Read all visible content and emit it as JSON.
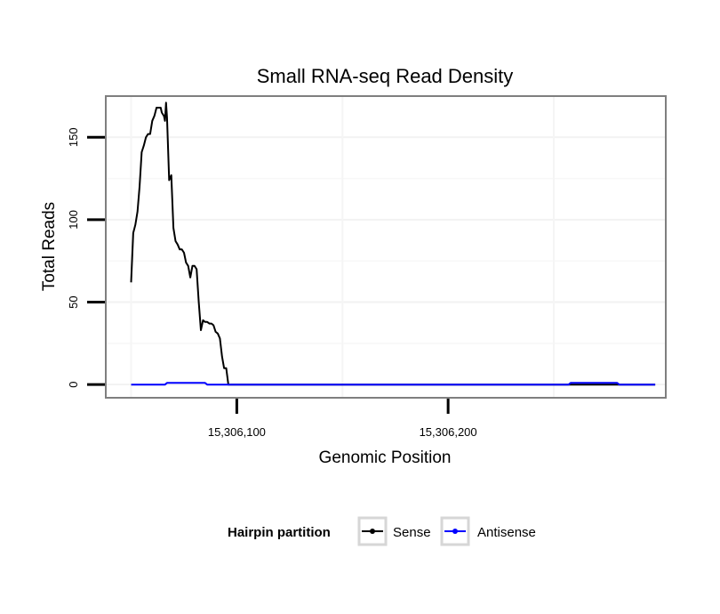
{
  "chart_data": {
    "type": "line",
    "title": "Small RNA-seq Read Density",
    "xlabel": "Genomic Position",
    "ylabel": "Total Reads",
    "xlim": [
      15306038,
      15306303
    ],
    "ylim": [
      -8,
      175
    ],
    "x_ticks": [
      15306100,
      15306200
    ],
    "x_tick_labels": [
      "15,306,100",
      "15,306,200"
    ],
    "y_ticks": [
      0,
      50,
      100,
      150
    ],
    "y_tick_labels": [
      "0",
      "50",
      "100",
      "150"
    ],
    "grid": true,
    "legend": {
      "title": "Hairpin partition",
      "position": "bottom"
    },
    "series": [
      {
        "name": "Sense",
        "color": "#000000",
        "x": [
          15306050,
          15306051,
          15306052,
          15306053,
          15306054,
          15306055,
          15306056,
          15306057,
          15306058,
          15306059,
          15306060,
          15306061,
          15306062,
          15306063,
          15306064,
          15306064.5,
          15306065,
          15306065.5,
          15306066,
          15306066.5,
          15306067,
          15306068,
          15306069,
          15306070,
          15306071,
          15306072,
          15306073,
          15306074,
          15306075,
          15306076,
          15306077,
          15306078,
          15306079,
          15306080,
          15306081,
          15306082,
          15306083,
          15306084,
          15306085,
          15306086,
          15306087,
          15306088,
          15306089,
          15306090,
          15306091,
          15306092,
          15306093,
          15306094,
          15306095,
          15306096,
          15306260,
          15306270,
          15306280,
          15306298
        ],
        "values": [
          62,
          92,
          97,
          105,
          120,
          141,
          145,
          150,
          152,
          152,
          160,
          163,
          168,
          168,
          168,
          165,
          164,
          163,
          160,
          171,
          162,
          124,
          127,
          95,
          87,
          85,
          82,
          82,
          80,
          74,
          72,
          65,
          72,
          72,
          70,
          50,
          33,
          39,
          38,
          38,
          37,
          37,
          36,
          32,
          31,
          28,
          17,
          10,
          10,
          0,
          0,
          0,
          0,
          0
        ]
      },
      {
        "name": "Antisense",
        "color": "#0000ff",
        "x": [
          15306050,
          15306066,
          15306067,
          15306085,
          15306086,
          15306257,
          15306258,
          15306280,
          15306281,
          15306298
        ],
        "values": [
          0,
          0,
          1,
          1,
          0,
          0,
          1,
          1,
          0,
          0
        ]
      }
    ]
  }
}
